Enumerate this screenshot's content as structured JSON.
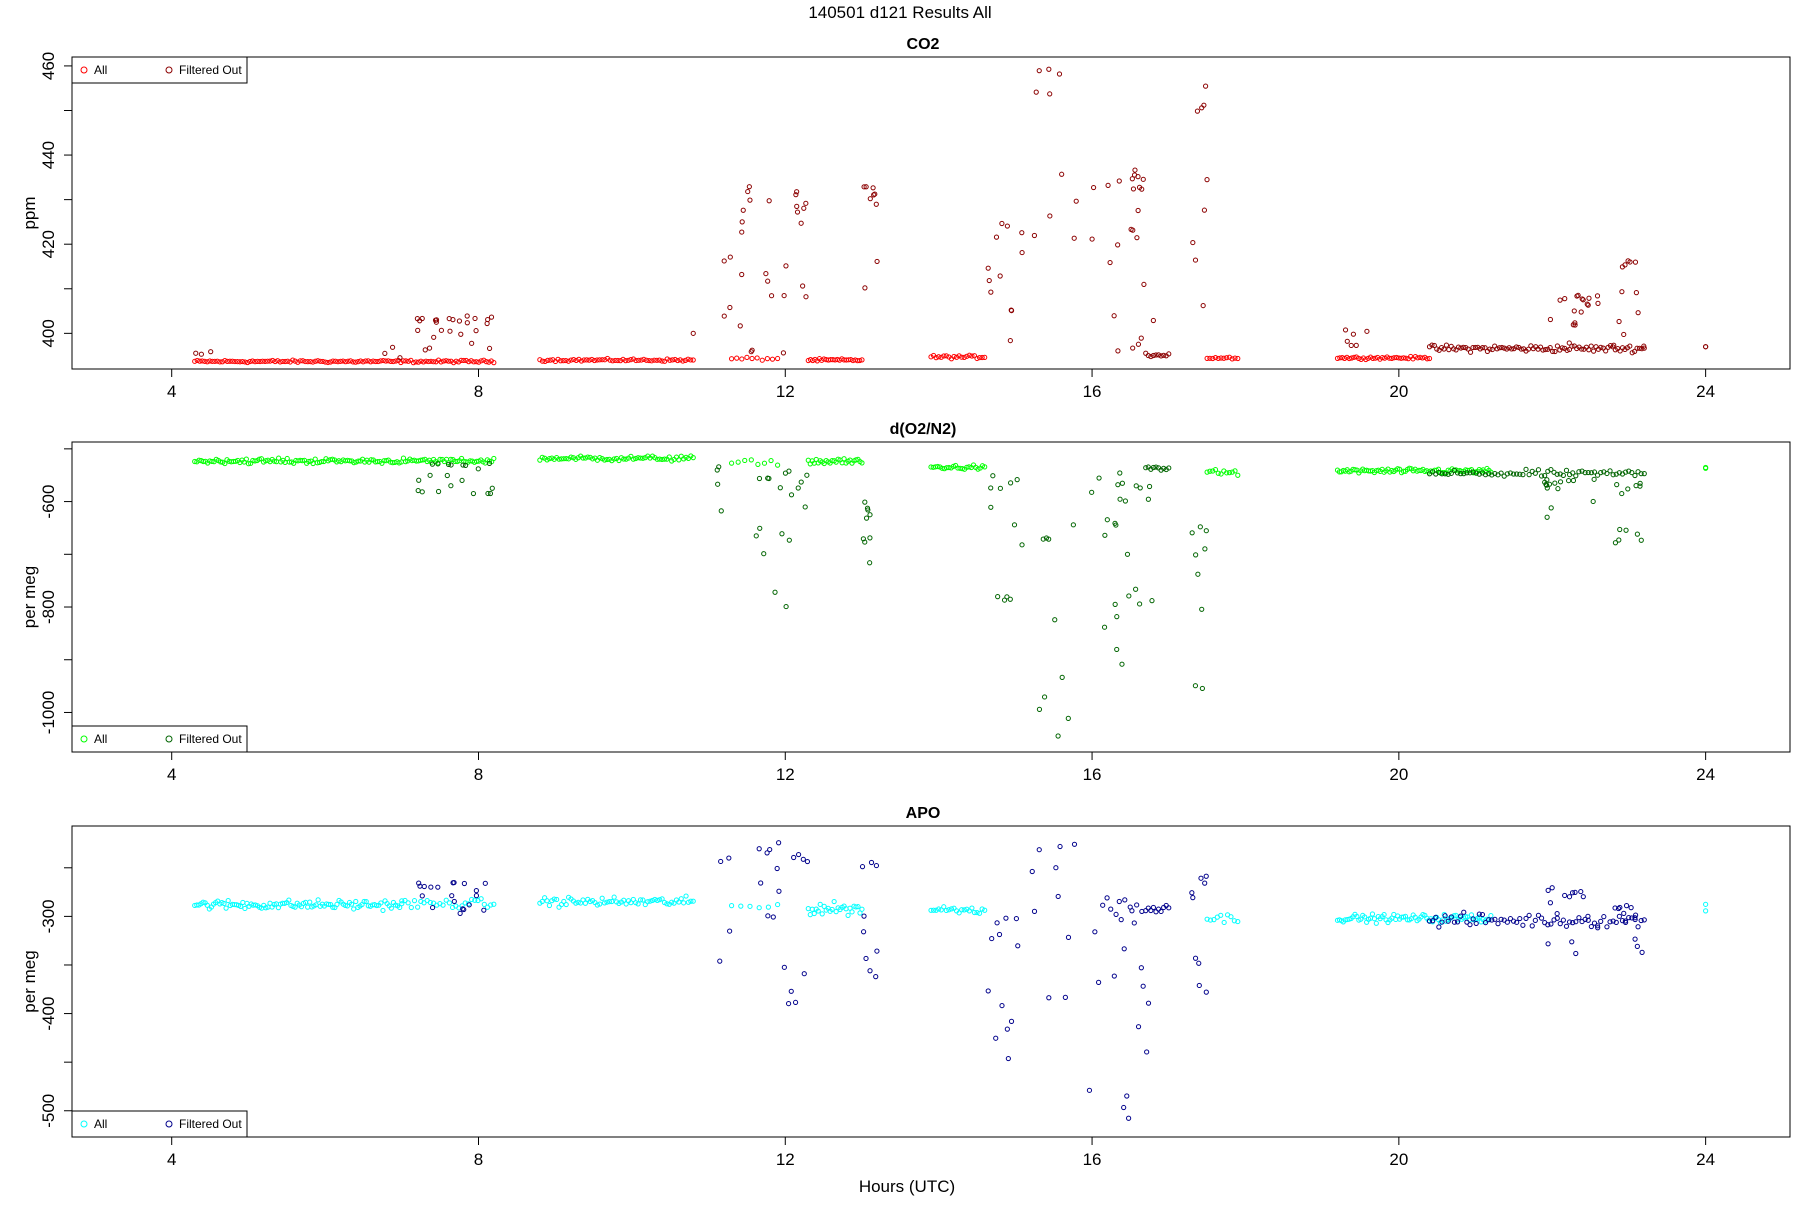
{
  "figure": {
    "title": "140501   d121   Results All",
    "xlabel": "Hours (UTC)"
  },
  "chart_data": [
    {
      "type": "scatter",
      "title": "CO2",
      "xlabel": "Hours (UTC)",
      "ylabel": "ppm",
      "xlim": [
        2.7,
        25.1
      ],
      "ylim": [
        392.0,
        462.0
      ],
      "xticks": [
        4,
        8,
        12,
        16,
        20,
        24
      ],
      "yticks": [
        400,
        420,
        440,
        460
      ],
      "legend": "top-left",
      "series": [
        {
          "name": "All",
          "color": "#ff0000",
          "segments": [
            {
              "x0": 4.3,
              "x1": 8.2,
              "n": 120,
              "base": 393.7,
              "noise": 0.4
            },
            {
              "x0": 8.8,
              "x1": 10.8,
              "n": 60,
              "base": 394.0,
              "noise": 0.4
            },
            {
              "x0": 11.3,
              "x1": 11.9,
              "n": 10,
              "base": 394.3,
              "noise": 0.5
            },
            {
              "x0": 12.3,
              "x1": 13.0,
              "n": 25,
              "base": 394.0,
              "noise": 0.4
            },
            {
              "x0": 13.9,
              "x1": 14.6,
              "n": 22,
              "base": 394.7,
              "noise": 0.5
            },
            {
              "x0": 17.5,
              "x1": 17.9,
              "n": 12,
              "base": 394.5,
              "noise": 0.4
            },
            {
              "x0": 19.2,
              "x1": 20.4,
              "n": 40,
              "base": 394.5,
              "noise": 0.4
            }
          ],
          "spikes": []
        },
        {
          "name": "Filtered Out",
          "color": "#8b0000",
          "segments": [
            {
              "x0": 16.7,
              "x1": 17.0,
              "n": 10,
              "base": 395.2,
              "noise": 0.6
            },
            {
              "x0": 20.4,
              "x1": 23.2,
              "n": 90,
              "base": 396.6,
              "noise": 1.1
            }
          ],
          "spikes": [
            {
              "x0": 4.3,
              "x1": 4.6,
              "n": 3,
              "lo": 395,
              "hi": 396
            },
            {
              "x0": 6.7,
              "x1": 7.0,
              "n": 3,
              "lo": 394,
              "hi": 397
            },
            {
              "x0": 7.2,
              "x1": 8.2,
              "n": 25,
              "lo": 395,
              "hi": 404
            },
            {
              "x0": 10.8,
              "x1": 10.8,
              "n": 1,
              "lo": 400,
              "hi": 400
            },
            {
              "x0": 11.2,
              "x1": 11.3,
              "n": 4,
              "lo": 403,
              "hi": 418
            },
            {
              "x0": 11.4,
              "x1": 12.3,
              "n": 20,
              "lo": 395,
              "hi": 433
            },
            {
              "x0": 12.1,
              "x1": 12.3,
              "n": 6,
              "lo": 407,
              "hi": 433
            },
            {
              "x0": 13.0,
              "x1": 13.2,
              "n": 9,
              "lo": 406,
              "hi": 433
            },
            {
              "x0": 14.6,
              "x1": 15.1,
              "n": 12,
              "lo": 395,
              "hi": 426
            },
            {
              "x0": 15.2,
              "x1": 15.8,
              "n": 10,
              "lo": 413,
              "hi": 460
            },
            {
              "x0": 15.9,
              "x1": 16.8,
              "n": 25,
              "lo": 396,
              "hi": 437
            },
            {
              "x0": 17.3,
              "x1": 17.5,
              "n": 9,
              "lo": 405,
              "hi": 457
            },
            {
              "x0": 19.3,
              "x1": 19.6,
              "n": 6,
              "lo": 396,
              "hi": 401
            },
            {
              "x0": 21.9,
              "x1": 22.6,
              "n": 18,
              "lo": 397,
              "hi": 409
            },
            {
              "x0": 22.8,
              "x1": 23.2,
              "n": 12,
              "lo": 397,
              "hi": 417
            },
            {
              "x0": 24.0,
              "x1": 24.0,
              "n": 2,
              "lo": 397,
              "hi": 397
            }
          ]
        }
      ]
    },
    {
      "type": "scatter",
      "title": "d(O2/N2)",
      "xlabel": "Hours (UTC)",
      "ylabel": "per meg",
      "xlim": [
        2.7,
        25.1
      ],
      "ylim": [
        -1075,
        -487
      ],
      "xticks": [
        4,
        8,
        12,
        16,
        20,
        24
      ],
      "yticks": [
        -600,
        -800,
        -1000
      ],
      "legend": "bottom-left",
      "series": [
        {
          "name": "All",
          "color": "#00ff00",
          "segments": [
            {
              "x0": 4.3,
              "x1": 8.2,
              "n": 140,
              "base": -523,
              "noise": 7
            },
            {
              "x0": 8.8,
              "x1": 10.8,
              "n": 65,
              "base": -518,
              "noise": 7
            },
            {
              "x0": 11.3,
              "x1": 11.9,
              "n": 8,
              "base": -526,
              "noise": 8
            },
            {
              "x0": 12.3,
              "x1": 13.0,
              "n": 28,
              "base": -524,
              "noise": 8
            },
            {
              "x0": 13.9,
              "x1": 14.6,
              "n": 25,
              "base": -535,
              "noise": 6
            },
            {
              "x0": 17.5,
              "x1": 17.9,
              "n": 12,
              "base": -545,
              "noise": 8
            },
            {
              "x0": 19.2,
              "x1": 21.2,
              "n": 80,
              "base": -542,
              "noise": 7
            },
            {
              "x0": 24.0,
              "x1": 24.0,
              "n": 2,
              "base": -538,
              "noise": 5
            }
          ],
          "spikes": []
        },
        {
          "name": "Filtered Out",
          "color": "#006400",
          "segments": [
            {
              "x0": 16.7,
              "x1": 17.0,
              "n": 10,
              "base": -537,
              "noise": 8
            },
            {
              "x0": 20.4,
              "x1": 23.2,
              "n": 70,
              "base": -547,
              "noise": 10
            }
          ],
          "spikes": [
            {
              "x0": 7.2,
              "x1": 8.2,
              "n": 20,
              "lo": -585,
              "hi": -525
            },
            {
              "x0": 11.1,
              "x1": 11.3,
              "n": 4,
              "lo": -705,
              "hi": -520
            },
            {
              "x0": 11.6,
              "x1": 12.3,
              "n": 18,
              "lo": -800,
              "hi": -540
            },
            {
              "x0": 13.0,
              "x1": 13.2,
              "n": 9,
              "lo": -820,
              "hi": -600
            },
            {
              "x0": 14.6,
              "x1": 15.1,
              "n": 12,
              "lo": -800,
              "hi": -545
            },
            {
              "x0": 15.2,
              "x1": 15.8,
              "n": 10,
              "lo": -1050,
              "hi": -620
            },
            {
              "x0": 15.9,
              "x1": 16.8,
              "n": 25,
              "lo": -915,
              "hi": -545
            },
            {
              "x0": 17.3,
              "x1": 17.5,
              "n": 9,
              "lo": -1000,
              "hi": -605
            },
            {
              "x0": 21.9,
              "x1": 22.6,
              "n": 15,
              "lo": -640,
              "hi": -555
            },
            {
              "x0": 22.8,
              "x1": 23.2,
              "n": 12,
              "lo": -680,
              "hi": -565
            }
          ]
        }
      ]
    },
    {
      "type": "scatter",
      "title": "APO",
      "xlabel": "Hours (UTC)",
      "ylabel": "per meg",
      "xlim": [
        2.7,
        25.1
      ],
      "ylim": [
        -527,
        -207
      ],
      "xticks": [
        4,
        8,
        12,
        16,
        20,
        24
      ],
      "yticks": [
        -300,
        -400,
        -500
      ],
      "legend": "bottom-left",
      "series": [
        {
          "name": "All",
          "color": "#00ffff",
          "segments": [
            {
              "x0": 4.3,
              "x1": 7.0,
              "n": 100,
              "base": -288,
              "noise": 7
            },
            {
              "x0": 7.0,
              "x1": 8.2,
              "n": 30,
              "base": -287,
              "noise": 7
            },
            {
              "x0": 8.8,
              "x1": 10.8,
              "n": 65,
              "base": -285,
              "noise": 7
            },
            {
              "x0": 11.3,
              "x1": 11.9,
              "n": 6,
              "base": -290,
              "noise": 8
            },
            {
              "x0": 12.3,
              "x1": 13.0,
              "n": 28,
              "base": -292,
              "noise": 9
            },
            {
              "x0": 13.9,
              "x1": 14.6,
              "n": 22,
              "base": -293,
              "noise": 6
            },
            {
              "x0": 17.5,
              "x1": 17.9,
              "n": 10,
              "base": -302,
              "noise": 7
            },
            {
              "x0": 19.2,
              "x1": 21.2,
              "n": 80,
              "base": -302,
              "noise": 6
            },
            {
              "x0": 24.0,
              "x1": 24.0,
              "n": 2,
              "base": -290,
              "noise": 6
            }
          ],
          "spikes": []
        },
        {
          "name": "Filtered Out",
          "color": "#00008b",
          "segments": [
            {
              "x0": 16.7,
              "x1": 17.0,
              "n": 10,
              "base": -292,
              "noise": 6
            },
            {
              "x0": 20.4,
              "x1": 23.2,
              "n": 70,
              "base": -304,
              "noise": 10
            }
          ],
          "spikes": [
            {
              "x0": 7.2,
              "x1": 8.2,
              "n": 20,
              "lo": -300,
              "hi": -265
            },
            {
              "x0": 11.1,
              "x1": 11.3,
              "n": 4,
              "lo": -372,
              "hi": -230
            },
            {
              "x0": 11.6,
              "x1": 12.3,
              "n": 18,
              "lo": -395,
              "hi": -222
            },
            {
              "x0": 13.0,
              "x1": 13.2,
              "n": 9,
              "lo": -410,
              "hi": -240
            },
            {
              "x0": 14.6,
              "x1": 15.1,
              "n": 12,
              "lo": -462,
              "hi": -300
            },
            {
              "x0": 15.2,
              "x1": 15.8,
              "n": 10,
              "lo": -515,
              "hi": -215
            },
            {
              "x0": 15.9,
              "x1": 16.8,
              "n": 25,
              "lo": -510,
              "hi": -280
            },
            {
              "x0": 17.3,
              "x1": 17.5,
              "n": 9,
              "lo": -455,
              "hi": -250
            },
            {
              "x0": 21.9,
              "x1": 22.6,
              "n": 15,
              "lo": -345,
              "hi": -270
            },
            {
              "x0": 22.8,
              "x1": 23.2,
              "n": 12,
              "lo": -345,
              "hi": -285
            }
          ]
        }
      ]
    }
  ]
}
